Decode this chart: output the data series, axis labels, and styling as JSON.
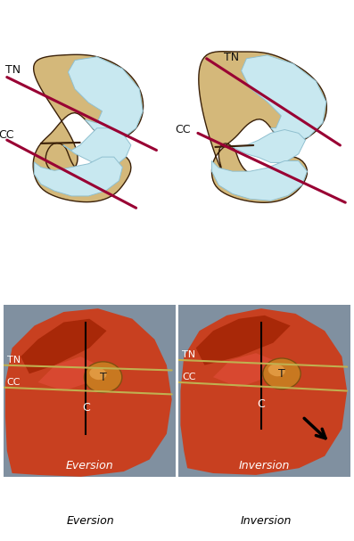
{
  "fig_width": 3.97,
  "fig_height": 6.07,
  "dpi": 100,
  "background_color": "#ffffff",
  "bone_fill": "#d4b87a",
  "bone_edge": "#3a2008",
  "bone_shadow": "#b8954a",
  "cartilage_fill": "#c8e8f0",
  "cartilage_edge": "#90c0d0",
  "axis_color": "#990033",
  "axis_lw": 2.2,
  "label_fontsize": 8,
  "label_color": "#111111",
  "photo_bg": "#c04010",
  "photo_tissue_dark": "#a83010",
  "photo_tissue_mid": "#d05020",
  "photo_tissue_light": "#e06830",
  "photo_bg2": "#b8c8d8",
  "T_fill": "#d08020",
  "T_edge": "#905010",
  "needle_color": "#c8b060",
  "black": "#000000",
  "white_label": "#ffffff",
  "TN_label": "TN",
  "CC_label": "CC",
  "T_label": "T",
  "C_label": "C",
  "eversion_label": "Eversion",
  "inversion_label": "Inversion"
}
